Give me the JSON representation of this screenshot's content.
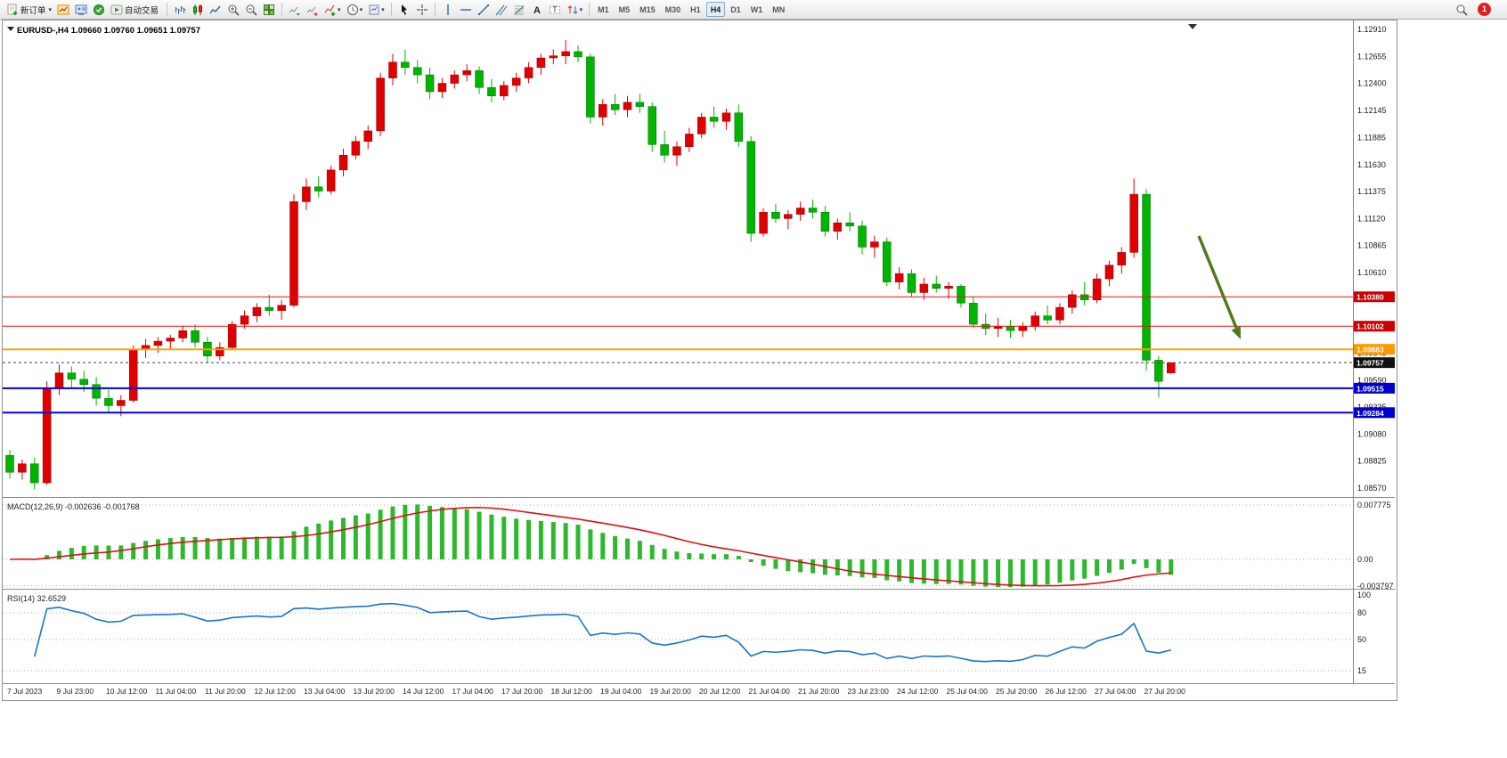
{
  "glyphs": {
    "caret_down": "▾"
  },
  "toolbar": {
    "new_order": "新订单",
    "autotrade": "自动交易",
    "timeframes": [
      "M1",
      "M5",
      "M15",
      "M30",
      "H1",
      "H4",
      "D1",
      "W1",
      "MN"
    ],
    "active_timeframe": "H4",
    "notification_count": "1"
  },
  "quote": {
    "symbol": "EURUSD-,H4",
    "open": "1.09660",
    "high": "1.09760",
    "low": "1.09651",
    "close": "1.09757"
  },
  "colors": {
    "bull": "#e00000",
    "bull_stroke": "#8f0000",
    "bear": "#00b400",
    "bear_stroke": "#006e00",
    "macd_hist": "#2db82d",
    "macd_signal": "#dd1111",
    "rsi_line": "#1874cd",
    "arrow": "#4e7c1c",
    "hline_red": "#ee1111",
    "hline_orange": "#ffa000",
    "hline_blue": "#0000dd",
    "label_red_bg": "#cc0000",
    "label_orange_bg": "#ff9800",
    "label_blue_bg": "#0000cc",
    "price_label_bg": "#101010"
  },
  "price_axis": {
    "ticks": [
      "1.12910",
      "1.12655",
      "1.12400",
      "1.12145",
      "1.11885",
      "1.11630",
      "1.11375",
      "1.11120",
      "1.10865",
      "1.10610",
      "1.10355",
      "1.10100",
      "1.09845",
      "1.09590",
      "1.09335",
      "1.09080",
      "1.08825",
      "1.08570"
    ]
  },
  "hlines": [
    {
      "price": 1.1038,
      "label": "1.10380",
      "color": "#ee1111",
      "bg": "#cc0000",
      "width": 1
    },
    {
      "price": 1.10102,
      "label": "1.10102",
      "color": "#ee1111",
      "bg": "#cc0000",
      "width": 1
    },
    {
      "price": 1.09883,
      "label": "1.09883",
      "color": "#ffa000",
      "bg": "#ff9800",
      "width": 2
    },
    {
      "price": 1.09515,
      "label": "1.09515",
      "color": "#0000dd",
      "bg": "#0000cc",
      "width": 2
    },
    {
      "price": 1.09284,
      "label": "1.09284",
      "color": "#0000dd",
      "bg": "#0000cc",
      "width": 2
    }
  ],
  "current_price": {
    "value": 1.09757,
    "label": "1.09757",
    "bg": "#101010"
  },
  "macd": {
    "title": "MACD(12,26,9)",
    "value_main": "-0.002636",
    "value_signal": "-0.001768",
    "axis": [
      "0.007775",
      "0.00",
      "-0.003797"
    ]
  },
  "rsi": {
    "title": "RSI(14)",
    "value": "32.6529",
    "axis": [
      "100",
      "80",
      "50",
      "15"
    ],
    "level_lines": [
      80,
      50,
      15
    ]
  },
  "time_axis": [
    "7 Jul 2023",
    "9 Jul 23:00",
    "10 Jul 12:00",
    "11 Jul 04:00",
    "11 Jul 20:00",
    "12 Jul 12:00",
    "13 Jul 04:00",
    "13 Jul 20:00",
    "14 Jul 12:00",
    "17 Jul 04:00",
    "17 Jul 20:00",
    "18 Jul 12:00",
    "19 Jul 04:00",
    "19 Jul 20:00",
    "20 Jul 12:00",
    "21 Jul 04:00",
    "21 Jul 20:00",
    "23 Jul 23:00",
    "24 Jul 12:00",
    "25 Jul 04:00",
    "25 Jul 20:00",
    "26 Jul 12:00",
    "27 Jul 04:00",
    "27 Jul 20:00"
  ],
  "chart_data": {
    "type": "candlestick",
    "symbol": "EURUSD-",
    "timeframe": "H4",
    "ylim": [
      1.0857,
      1.1291
    ],
    "candles": [
      [
        1.0888,
        1.0893,
        1.0866,
        1.0872
      ],
      [
        1.0872,
        1.0884,
        1.0865,
        1.088
      ],
      [
        1.088,
        1.0886,
        1.0856,
        1.0862
      ],
      [
        1.0862,
        1.0958,
        1.086,
        1.0952
      ],
      [
        1.0952,
        1.0974,
        1.0945,
        1.0966
      ],
      [
        1.0966,
        1.0972,
        1.0952,
        1.096
      ],
      [
        1.096,
        1.0968,
        1.0948,
        1.0955
      ],
      [
        1.0955,
        1.0962,
        1.0935,
        1.0942
      ],
      [
        1.0942,
        1.095,
        1.0928,
        1.0935
      ],
      [
        1.0935,
        1.0945,
        1.0925,
        1.094
      ],
      [
        1.094,
        1.0992,
        1.0938,
        1.0988
      ],
      [
        1.0988,
        1.0998,
        1.098,
        1.0992
      ],
      [
        1.0992,
        1.1,
        1.0985,
        1.0996
      ],
      [
        1.0996,
        1.1002,
        1.0988,
        1.0999
      ],
      [
        1.0999,
        1.101,
        1.0995,
        1.1006
      ],
      [
        1.1006,
        1.1012,
        1.099,
        1.0995
      ],
      [
        1.0995,
        1.1,
        1.0975,
        1.0982
      ],
      [
        1.0982,
        1.0995,
        1.0978,
        1.099
      ],
      [
        1.099,
        1.1015,
        1.0988,
        1.1012
      ],
      [
        1.1012,
        1.1025,
        1.1008,
        1.102
      ],
      [
        1.102,
        1.1032,
        1.1014,
        1.1028
      ],
      [
        1.1028,
        1.104,
        1.102,
        1.1025
      ],
      [
        1.1025,
        1.1035,
        1.1016,
        1.103
      ],
      [
        1.103,
        1.1135,
        1.1028,
        1.1128
      ],
      [
        1.1128,
        1.115,
        1.112,
        1.1142
      ],
      [
        1.1142,
        1.1152,
        1.1132,
        1.1138
      ],
      [
        1.1138,
        1.1162,
        1.1135,
        1.1158
      ],
      [
        1.1158,
        1.1178,
        1.1152,
        1.1172
      ],
      [
        1.1172,
        1.119,
        1.1168,
        1.1185
      ],
      [
        1.1185,
        1.12,
        1.1178,
        1.1195
      ],
      [
        1.1195,
        1.125,
        1.119,
        1.1245
      ],
      [
        1.1245,
        1.1268,
        1.1238,
        1.126
      ],
      [
        1.126,
        1.1272,
        1.1248,
        1.1255
      ],
      [
        1.1255,
        1.1262,
        1.124,
        1.1248
      ],
      [
        1.1248,
        1.1255,
        1.1225,
        1.1232
      ],
      [
        1.1232,
        1.1245,
        1.1226,
        1.124
      ],
      [
        1.124,
        1.1252,
        1.1235,
        1.1248
      ],
      [
        1.1248,
        1.1258,
        1.1242,
        1.1252
      ],
      [
        1.1252,
        1.1256,
        1.123,
        1.1236
      ],
      [
        1.1236,
        1.1244,
        1.1222,
        1.1228
      ],
      [
        1.1228,
        1.1242,
        1.1224,
        1.1238
      ],
      [
        1.1238,
        1.125,
        1.1232,
        1.1245
      ],
      [
        1.1245,
        1.126,
        1.124,
        1.1255
      ],
      [
        1.1255,
        1.1268,
        1.1248,
        1.1264
      ],
      [
        1.1264,
        1.1272,
        1.1258,
        1.1266
      ],
      [
        1.1266,
        1.1281,
        1.1258,
        1.127
      ],
      [
        1.127,
        1.1276,
        1.126,
        1.1265
      ],
      [
        1.1265,
        1.1268,
        1.1202,
        1.1208
      ],
      [
        1.1208,
        1.1225,
        1.12,
        1.122
      ],
      [
        1.122,
        1.123,
        1.121,
        1.1215
      ],
      [
        1.1215,
        1.1228,
        1.1208,
        1.1222
      ],
      [
        1.1222,
        1.123,
        1.1212,
        1.1218
      ],
      [
        1.1218,
        1.1222,
        1.1175,
        1.1182
      ],
      [
        1.1182,
        1.1195,
        1.1165,
        1.1172
      ],
      [
        1.1172,
        1.1185,
        1.1162,
        1.118
      ],
      [
        1.118,
        1.1198,
        1.1175,
        1.1192
      ],
      [
        1.1192,
        1.1212,
        1.1188,
        1.1208
      ],
      [
        1.1208,
        1.1218,
        1.1198,
        1.1204
      ],
      [
        1.1204,
        1.1216,
        1.1196,
        1.1212
      ],
      [
        1.1212,
        1.122,
        1.118,
        1.1185
      ],
      [
        1.1185,
        1.119,
        1.109,
        1.1098
      ],
      [
        1.1098,
        1.1122,
        1.1095,
        1.1118
      ],
      [
        1.1118,
        1.1126,
        1.1108,
        1.1112
      ],
      [
        1.1112,
        1.112,
        1.1102,
        1.1116
      ],
      [
        1.1116,
        1.1128,
        1.111,
        1.1122
      ],
      [
        1.1122,
        1.113,
        1.1112,
        1.1118
      ],
      [
        1.1118,
        1.1124,
        1.1095,
        1.11
      ],
      [
        1.11,
        1.1112,
        1.1092,
        1.1108
      ],
      [
        1.1108,
        1.1118,
        1.11,
        1.1105
      ],
      [
        1.1105,
        1.111,
        1.1078,
        1.1085
      ],
      [
        1.1085,
        1.1096,
        1.1075,
        1.109
      ],
      [
        1.109,
        1.1094,
        1.1048,
        1.1052
      ],
      [
        1.1052,
        1.1066,
        1.1045,
        1.106
      ],
      [
        1.106,
        1.1064,
        1.1038,
        1.1042
      ],
      [
        1.1042,
        1.1056,
        1.1035,
        1.105
      ],
      [
        1.105,
        1.1058,
        1.1042,
        1.1046
      ],
      [
        1.1046,
        1.1052,
        1.1036,
        1.1048
      ],
      [
        1.1048,
        1.105,
        1.1028,
        1.1032
      ],
      [
        1.1032,
        1.1038,
        1.1008,
        1.1012
      ],
      [
        1.1012,
        1.1022,
        1.1002,
        1.1008
      ],
      [
        1.1008,
        1.1018,
        1.1,
        1.101
      ],
      [
        1.101,
        1.1016,
        1.0999,
        1.1006
      ],
      [
        1.1006,
        1.1014,
        1.1,
        1.101
      ],
      [
        1.101,
        1.1024,
        1.1006,
        1.102
      ],
      [
        1.102,
        1.103,
        1.1012,
        1.1016
      ],
      [
        1.1016,
        1.1032,
        1.1012,
        1.1028
      ],
      [
        1.1028,
        1.1044,
        1.1022,
        1.104
      ],
      [
        1.104,
        1.1052,
        1.103,
        1.1035
      ],
      [
        1.1035,
        1.106,
        1.1032,
        1.1055
      ],
      [
        1.1055,
        1.1072,
        1.1048,
        1.1068
      ],
      [
        1.1068,
        1.1085,
        1.106,
        1.108
      ],
      [
        1.108,
        1.115,
        1.1075,
        1.1135
      ],
      [
        1.1135,
        1.114,
        1.0968,
        1.0978
      ],
      [
        1.0978,
        1.0982,
        1.0943,
        1.0958
      ],
      [
        1.0966,
        1.0976,
        1.09651,
        1.09757
      ]
    ]
  }
}
